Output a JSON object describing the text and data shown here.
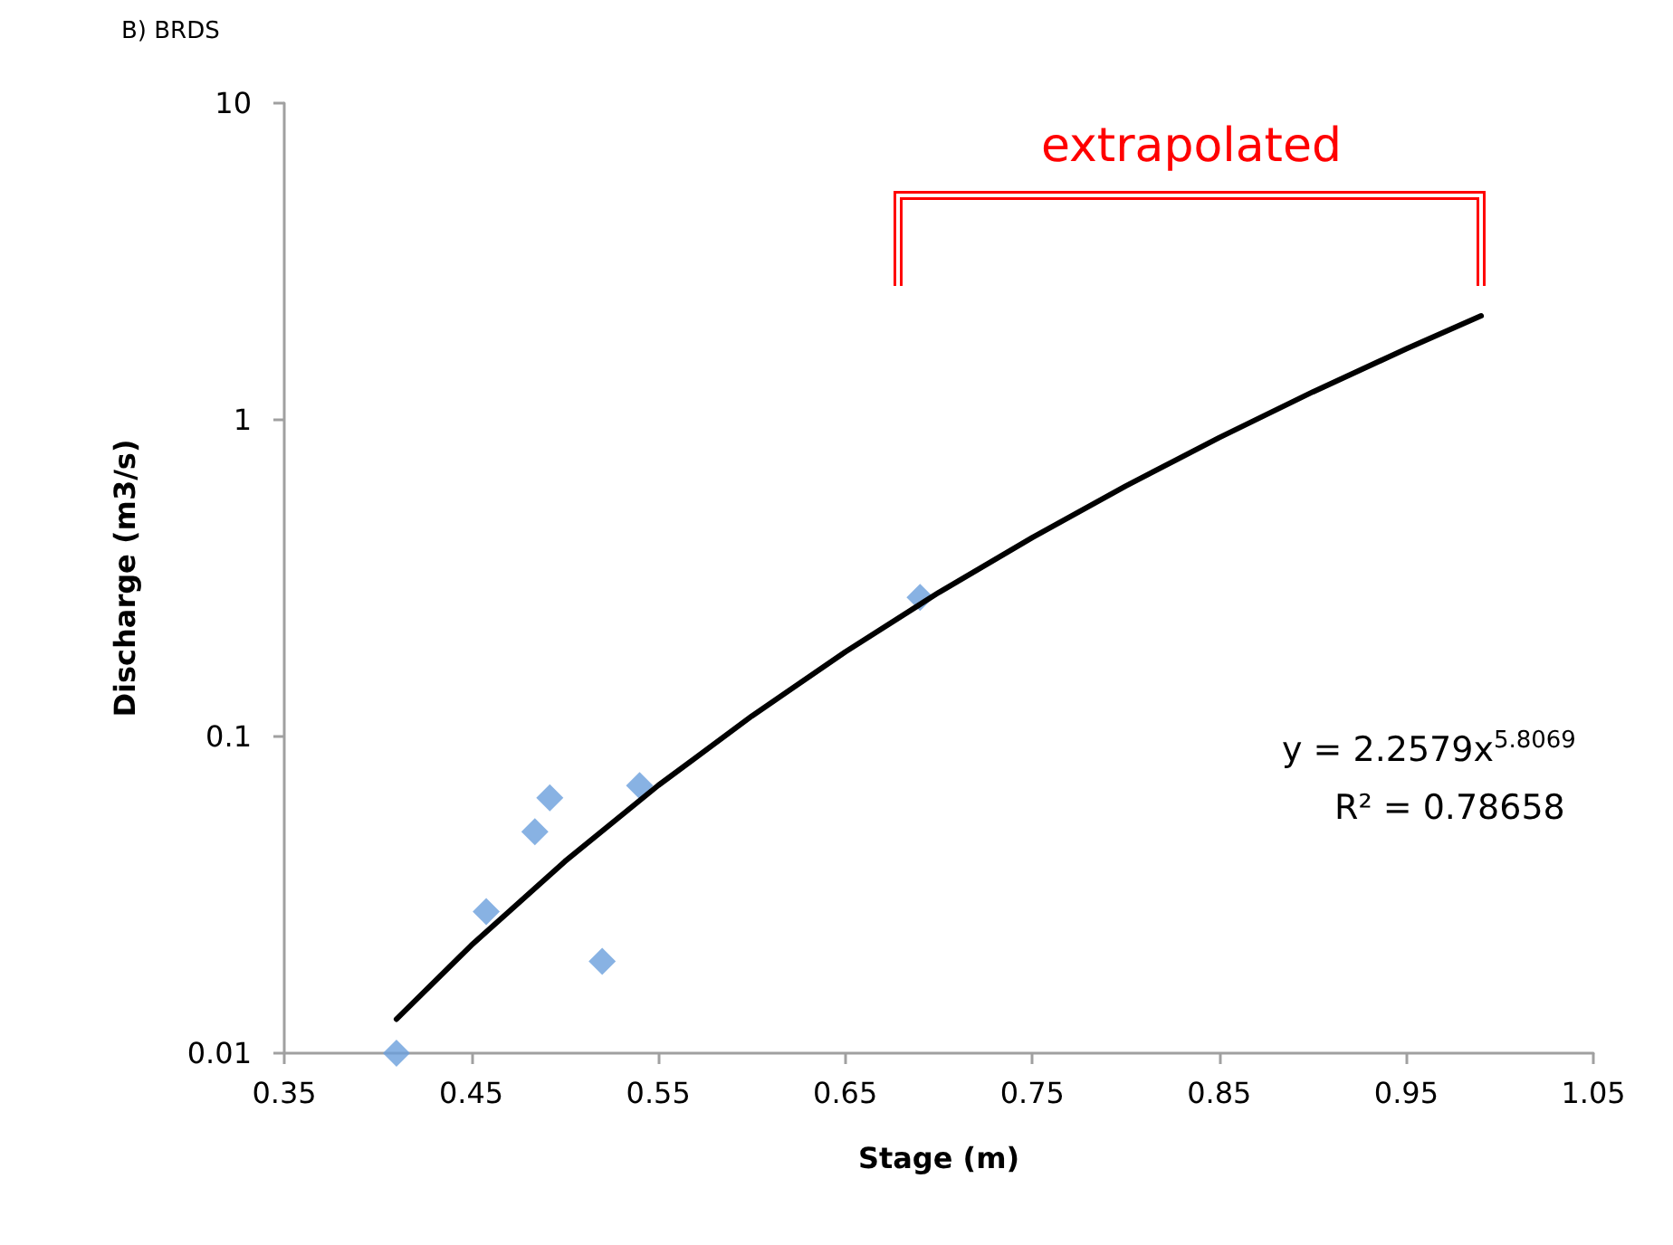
{
  "chart_data": {
    "type": "scatter",
    "title": "B) BRDS",
    "xlabel": "Stage (m)",
    "ylabel": "Discharge (m3/s)",
    "annotations": [
      "extrapolated",
      "y = 2.2579x$^{5.8069}$",
      "R² = 0.78658"
    ],
    "series": [
      {
        "color": "#6a9fdc",
        "marker": "diamond",
        "x": [
          0.41,
          0.458,
          0.484,
          0.492,
          0.52,
          0.54,
          0.69
        ],
        "values": [
          0.01,
          0.028,
          0.05,
          0.064,
          0.0195,
          0.07,
          0.275
        ]
      },
      {
        "type": "line",
        "color": "#000000",
        "marker": "none",
        "line_style": "solid",
        "x": [
          0.41,
          0.45,
          0.5,
          0.55,
          0.6,
          0.65,
          0.7,
          0.75,
          0.8,
          0.85,
          0.9,
          0.95,
          0.99
        ],
        "values": [
          0.0128,
          0.0219,
          0.0403,
          0.0701,
          0.116,
          0.185,
          0.285,
          0.425,
          0.618,
          0.879,
          1.225,
          1.676,
          2.13
        ]
      }
    ],
    "log": "y",
    "grid": false,
    "xlim": [
      0.35,
      1.05
    ],
    "xticks": [
      0.35,
      0.45,
      0.55,
      0.65,
      0.75,
      0.85,
      0.95,
      1.05
    ],
    "ylim": [
      0.01,
      10
    ],
    "yticks": [
      0.01,
      0.1,
      1,
      10
    ]
  }
}
